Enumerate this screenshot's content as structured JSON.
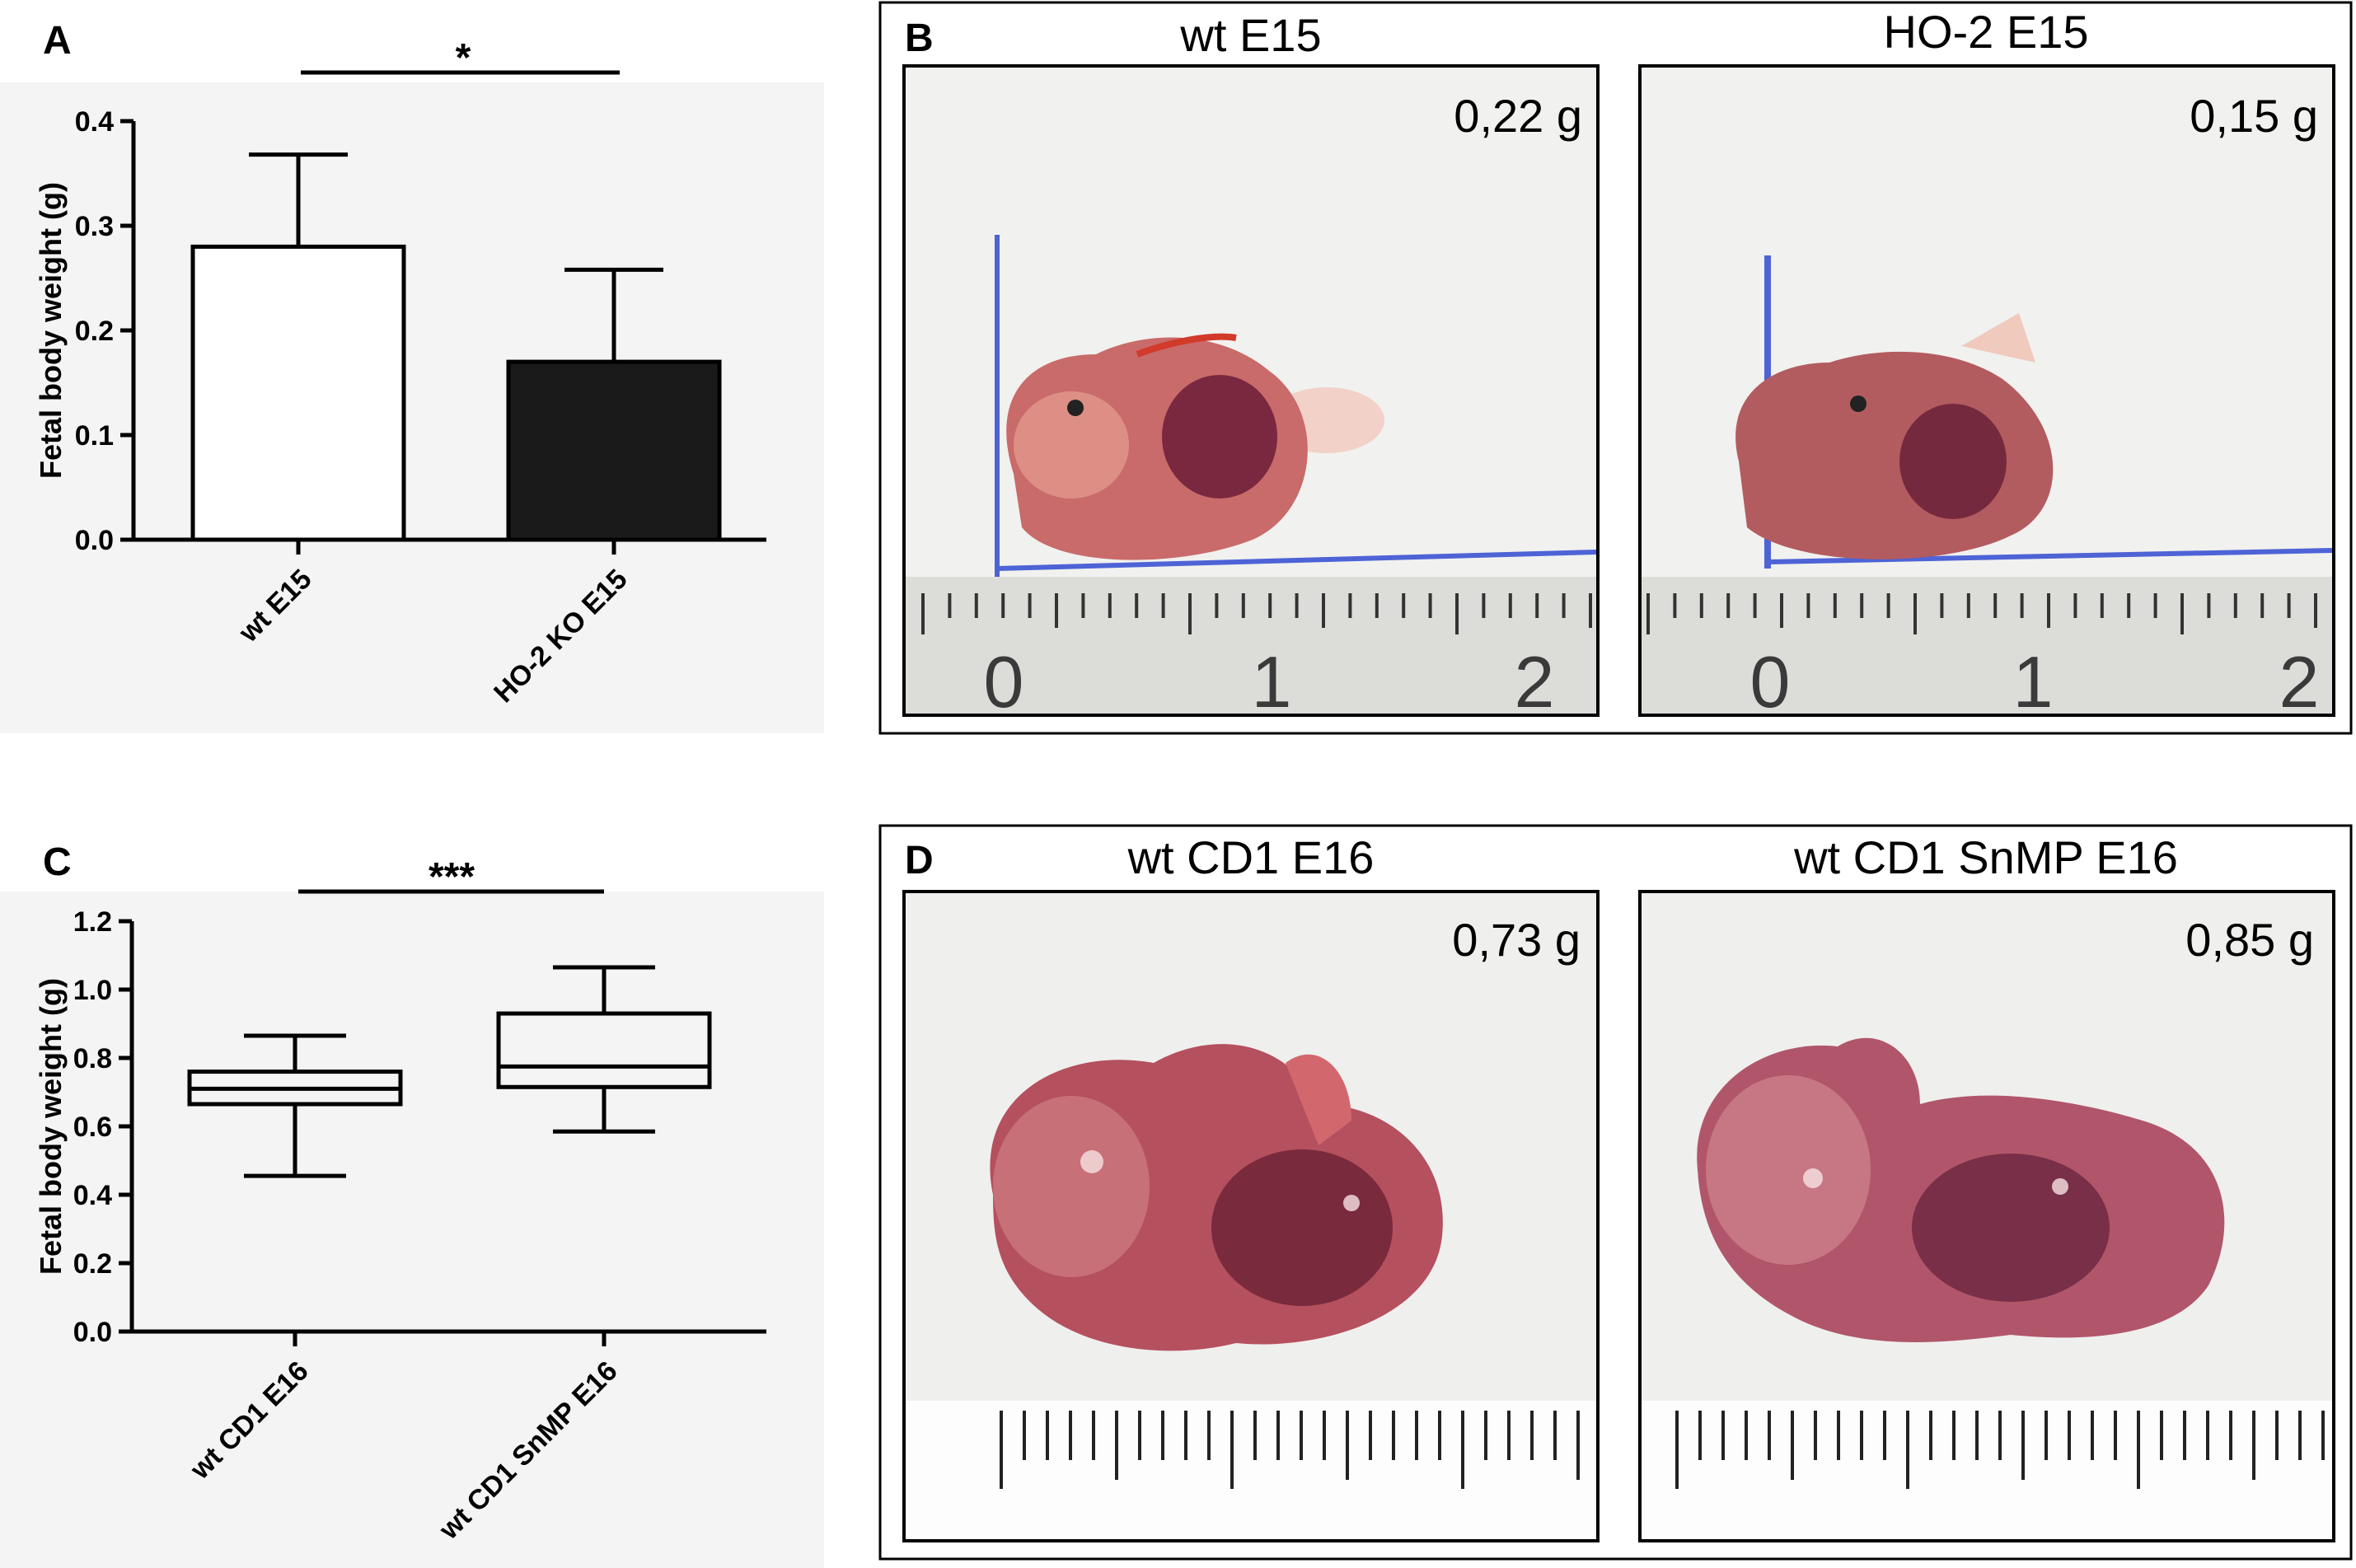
{
  "chart_data": [
    {
      "panel": "A",
      "type": "bar",
      "categories": [
        "wt E15",
        "HO-2 KO E15"
      ],
      "values": [
        0.28,
        0.17
      ],
      "error": [
        0.088,
        0.088
      ],
      "bar_colors": [
        "#ffffff",
        "#1a1a1a"
      ],
      "ylabel": "Fetal body weight (g)",
      "ylim": [
        0,
        0.4
      ],
      "yticks": [
        "0.0",
        "0.1",
        "0.2",
        "0.3",
        "0.4"
      ],
      "significance": "*"
    },
    {
      "panel": "C",
      "type": "box",
      "categories": [
        "wt CD1 E16",
        "wt CD1 SnMP E16"
      ],
      "boxes": [
        {
          "min": 0.455,
          "q1": 0.665,
          "median": 0.71,
          "q3": 0.76,
          "max": 0.865
        },
        {
          "min": 0.585,
          "q1": 0.715,
          "median": 0.775,
          "q3": 0.93,
          "max": 1.065
        }
      ],
      "ylabel": "Fetal body weight (g)",
      "ylim": [
        0,
        1.2
      ],
      "yticks": [
        "0.0",
        "0.2",
        "0.4",
        "0.6",
        "0.8",
        "1.0",
        "1.2"
      ],
      "significance": "***"
    }
  ],
  "panel_b": {
    "letter": "B",
    "photos": [
      {
        "title": "wt E15",
        "weight": "0,22 g"
      },
      {
        "title": "HO-2 E15",
        "weight": "0,15 g"
      }
    ],
    "ruler_numbers": [
      "0",
      "1",
      "2"
    ]
  },
  "panel_d": {
    "letter": "D",
    "photos": [
      {
        "title": "wt CD1 E16",
        "weight": "0,73 g"
      },
      {
        "title": "wt CD1 SnMP E16",
        "weight": "0,85 g"
      }
    ]
  },
  "colors": {
    "embryo": "#b85a60",
    "embryo_dark": "#6e2436",
    "ruler_blue": "#4d63d6",
    "photo_bg": "#f0f0ef"
  }
}
